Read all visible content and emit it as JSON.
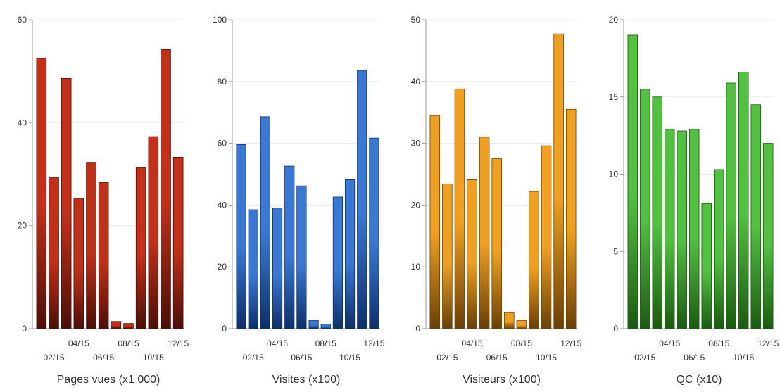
{
  "chart_data": [
    {
      "type": "bar",
      "xlabel": "Pages vues (x1 000)",
      "color": "#c0301a",
      "color_dark": "#4a0f08",
      "ylim": [
        0,
        60
      ],
      "yticks": [
        0,
        20,
        40,
        60
      ],
      "values": [
        52.5,
        29.4,
        48.6,
        25.3,
        32.3,
        28.4,
        1.4,
        1.0,
        31.3,
        37.3,
        54.2,
        33.3
      ],
      "xtick_labels": [
        "02/15",
        "04/15",
        "06/15",
        "08/15",
        "10/15",
        "12/15"
      ]
    },
    {
      "type": "bar",
      "xlabel": "Visites (x100)",
      "color": "#3a78d4",
      "color_dark": "#0e2f6a",
      "ylim": [
        0,
        100
      ],
      "yticks": [
        0,
        20,
        40,
        60,
        80,
        100
      ],
      "values": [
        59.6,
        38.5,
        68.6,
        39.0,
        52.6,
        46.2,
        2.7,
        1.5,
        42.6,
        48.2,
        83.6,
        61.7
      ],
      "xtick_labels": [
        "02/15",
        "04/15",
        "06/15",
        "08/15",
        "10/15",
        "12/15"
      ]
    },
    {
      "type": "bar",
      "xlabel": "Visiteurs (x100)",
      "color": "#f0a020",
      "color_dark": "#6a4006",
      "ylim": [
        0,
        50
      ],
      "yticks": [
        0,
        10,
        20,
        30,
        40,
        50
      ],
      "values": [
        34.5,
        23.4,
        38.8,
        24.1,
        31.0,
        27.5,
        2.6,
        1.3,
        22.2,
        29.6,
        47.7,
        35.5
      ],
      "xtick_labels": [
        "02/15",
        "04/15",
        "06/15",
        "08/15",
        "10/15",
        "12/15"
      ]
    },
    {
      "type": "bar",
      "xlabel": "QC (x10)",
      "color": "#52c040",
      "color_dark": "#1c5a12",
      "ylim": [
        0,
        20
      ],
      "yticks": [
        0,
        5,
        10,
        15,
        20
      ],
      "values": [
        19.0,
        15.5,
        15.0,
        12.9,
        12.8,
        12.9,
        8.1,
        10.3,
        15.9,
        16.6,
        14.5,
        12.0
      ],
      "xtick_labels": [
        "02/15",
        "04/15",
        "06/15",
        "08/15",
        "10/15",
        "12/15"
      ]
    }
  ]
}
